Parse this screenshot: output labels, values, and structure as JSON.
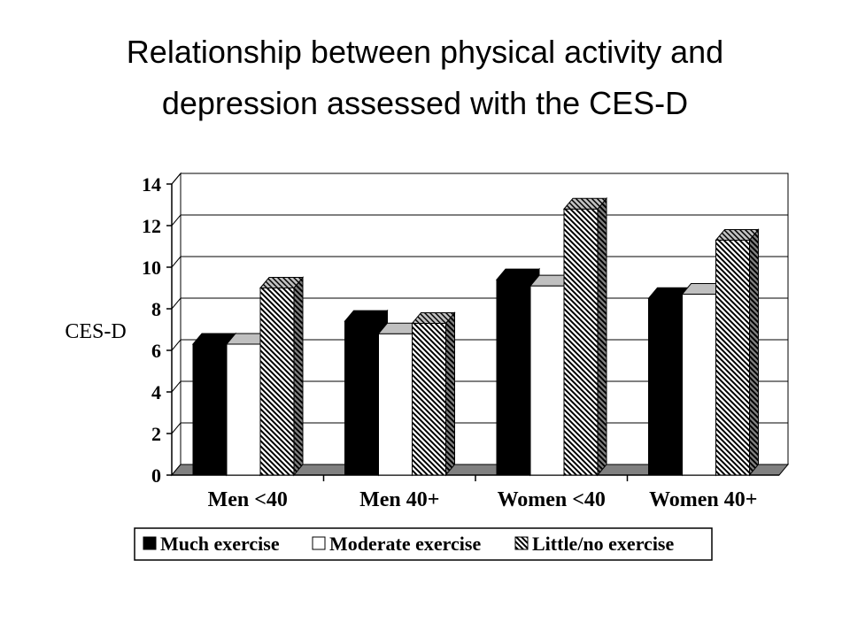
{
  "title": {
    "line1": "Relationship between physical activity and",
    "line2": "depression assessed with the CES-D"
  },
  "chart_data": {
    "type": "bar",
    "style": "3d-clustered",
    "ylabel": "CES-D",
    "xlabel": "",
    "ylim": [
      0,
      14
    ],
    "yticks": [
      "0",
      "2",
      "4",
      "6",
      "8",
      "10",
      "12",
      "14"
    ],
    "categories": [
      "Men <40",
      "Men 40+",
      "Women <40",
      "Women 40+"
    ],
    "series": [
      {
        "name": "Much exercise",
        "values": [
          6.3,
          7.4,
          9.4,
          8.5
        ],
        "fill": "solid-black"
      },
      {
        "name": "Moderate exercise",
        "values": [
          6.3,
          6.8,
          9.1,
          8.7
        ],
        "fill": "white"
      },
      {
        "name": "Little/no exercise",
        "values": [
          9.0,
          7.3,
          12.8,
          11.3
        ],
        "fill": "diagonal-hatch"
      }
    ],
    "grid": true,
    "legend_position": "bottom",
    "colors": {
      "wall": "#ffffff",
      "floor": "#808080",
      "bar_dark": "#000000",
      "bar_light": "#ffffff",
      "outline": "#000000"
    }
  }
}
